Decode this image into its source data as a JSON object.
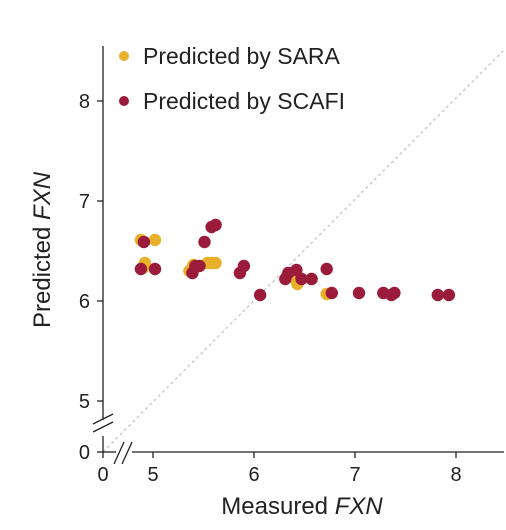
{
  "chart_data": {
    "type": "scatter",
    "xlabel": {
      "prefix": "Measured ",
      "italic": "FXN"
    },
    "ylabel": {
      "prefix": "Predicted ",
      "italic": "FXN"
    },
    "xlim": [
      4.5,
      8.5
    ],
    "ylim": [
      4.5,
      8.5
    ],
    "axis_break": true,
    "break_zero_label": "0",
    "x_ticks": [
      {
        "value": 5,
        "label": "5"
      },
      {
        "value": 6,
        "label": "6"
      },
      {
        "value": 7,
        "label": "7"
      },
      {
        "value": 8,
        "label": "8"
      }
    ],
    "y_ticks": [
      {
        "value": 5,
        "label": "5"
      },
      {
        "value": 6,
        "label": "6"
      },
      {
        "value": 7,
        "label": "7"
      },
      {
        "value": 8,
        "label": "8"
      }
    ],
    "identity_line": true,
    "grid": false,
    "legend_position": "top-left",
    "series": [
      {
        "name": "Predicted by SARA",
        "color": "#E8B02A",
        "points": [
          [
            4.88,
            6.61
          ],
          [
            5.02,
            6.61
          ],
          [
            4.92,
            6.38
          ],
          [
            4.9,
            6.33
          ],
          [
            5.58,
            6.38
          ],
          [
            5.62,
            6.38
          ],
          [
            5.54,
            6.38
          ],
          [
            5.4,
            6.36
          ],
          [
            6.43,
            6.17
          ],
          [
            6.47,
            6.22
          ],
          [
            6.72,
            6.07
          ],
          [
            6.57,
            6.22
          ],
          [
            5.36,
            6.3
          ],
          [
            6.38,
            6.24
          ]
        ]
      },
      {
        "name": "Predicted by SCAFI",
        "color": "#9B1B3A",
        "points": [
          [
            4.91,
            6.59
          ],
          [
            5.58,
            6.74
          ],
          [
            5.62,
            6.76
          ],
          [
            5.51,
            6.59
          ],
          [
            4.88,
            6.32
          ],
          [
            5.02,
            6.32
          ],
          [
            5.39,
            6.28
          ],
          [
            5.42,
            6.35
          ],
          [
            5.46,
            6.35
          ],
          [
            5.86,
            6.28
          ],
          [
            5.9,
            6.35
          ],
          [
            6.06,
            6.06
          ],
          [
            6.31,
            6.22
          ],
          [
            6.34,
            6.28
          ],
          [
            6.42,
            6.31
          ],
          [
            6.47,
            6.22
          ],
          [
            6.57,
            6.22
          ],
          [
            6.72,
            6.32
          ],
          [
            6.77,
            6.08
          ],
          [
            7.04,
            6.08
          ],
          [
            7.28,
            6.08
          ],
          [
            7.36,
            6.06
          ],
          [
            7.39,
            6.08
          ],
          [
            7.82,
            6.06
          ],
          [
            7.93,
            6.06
          ]
        ]
      }
    ]
  }
}
